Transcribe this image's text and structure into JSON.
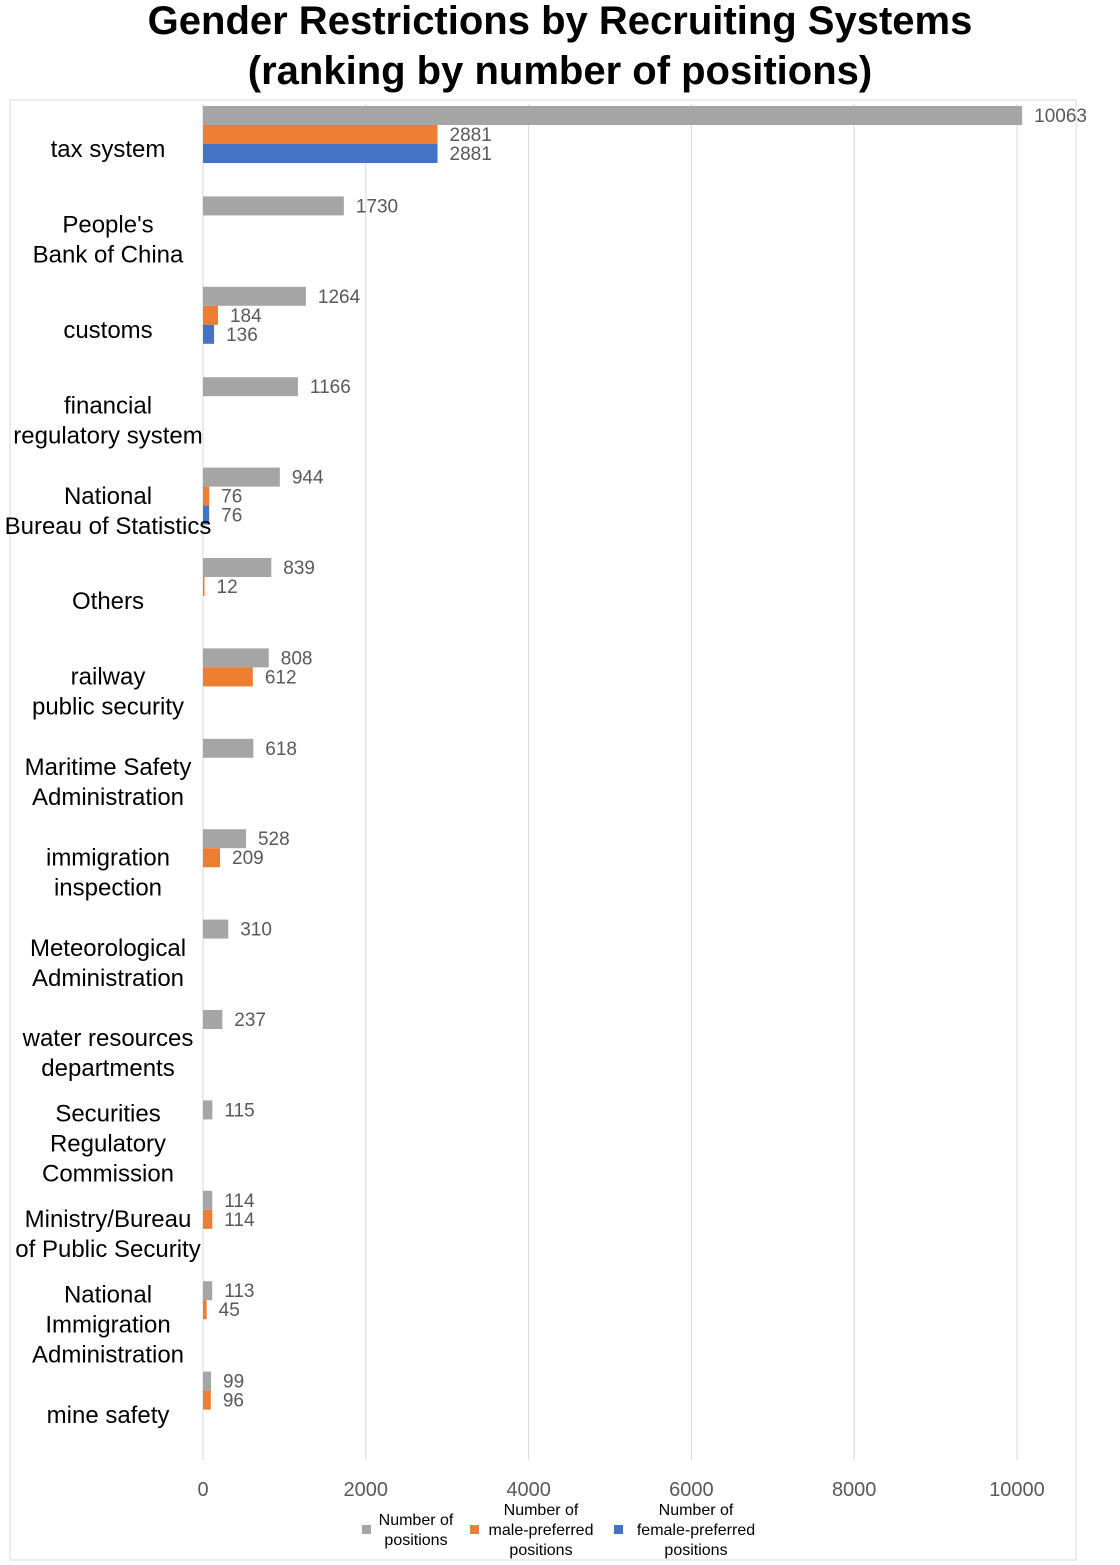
{
  "chart_data": {
    "type": "bar",
    "orientation": "horizontal",
    "title": [
      "Gender Restrictions by Recruiting Systems",
      "(ranking by number of positions)"
    ],
    "categories": [
      [
        "tax system"
      ],
      [
        "People's",
        "Bank of China"
      ],
      [
        "customs"
      ],
      [
        "financial",
        "regulatory system"
      ],
      [
        "National",
        "Bureau of Statistics"
      ],
      [
        "Others"
      ],
      [
        "railway",
        "public security"
      ],
      [
        "Maritime Safety",
        "Administration"
      ],
      [
        "immigration",
        "inspection"
      ],
      [
        "Meteorological",
        "Administration"
      ],
      [
        "water resources",
        "departments"
      ],
      [
        "Securities",
        "Regulatory",
        "Commission"
      ],
      [
        "Ministry/Bureau",
        "of Public Security"
      ],
      [
        "National",
        "Immigration",
        "Administration"
      ],
      [
        "mine safety"
      ]
    ],
    "series": [
      {
        "name": [
          "Number of",
          "positions"
        ],
        "color": "#a5a5a5",
        "values": [
          10063,
          1730,
          1264,
          1166,
          944,
          839,
          808,
          618,
          528,
          310,
          237,
          115,
          114,
          113,
          99
        ]
      },
      {
        "name": [
          "Number of",
          "male-preferred",
          "positions"
        ],
        "color": "#ed7d31",
        "values": [
          2881,
          null,
          184,
          null,
          76,
          12,
          612,
          null,
          209,
          null,
          null,
          null,
          114,
          45,
          96
        ]
      },
      {
        "name": [
          "Number of",
          "female-preferred",
          "positions"
        ],
        "color": "#4472c4",
        "values": [
          2881,
          null,
          136,
          null,
          76,
          null,
          null,
          null,
          null,
          null,
          null,
          null,
          null,
          null,
          null
        ]
      }
    ],
    "xlim": [
      0,
      10000
    ],
    "xticks": [
      0,
      2000,
      4000,
      6000,
      8000,
      10000
    ],
    "xtick_labels": [
      "0",
      "2000",
      "4000",
      "6000",
      "8000",
      "10000"
    ],
    "grid": true,
    "legend_position": "bottom",
    "data_labels": true
  }
}
